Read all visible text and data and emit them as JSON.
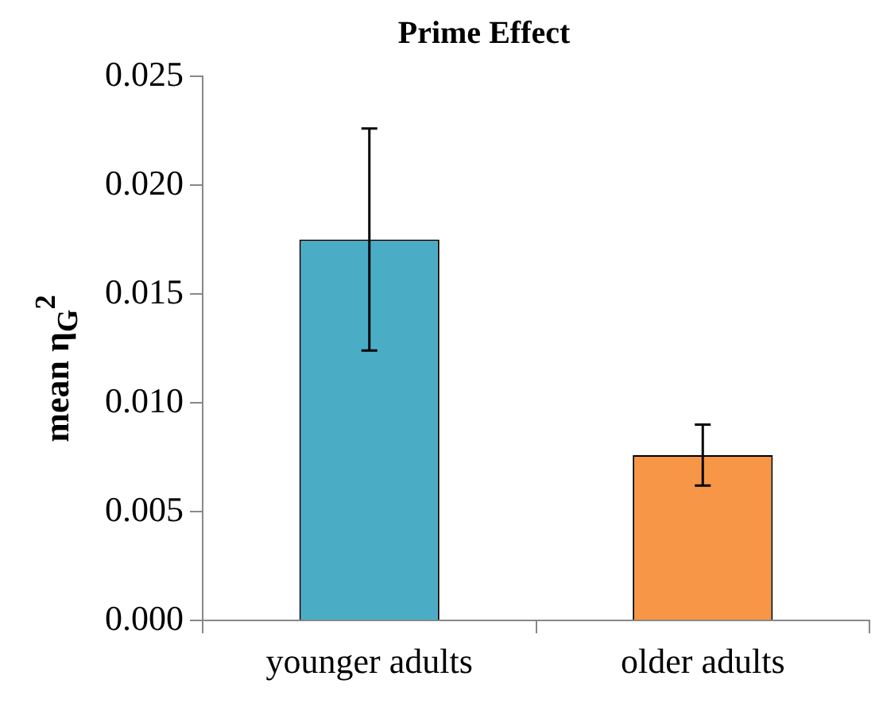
{
  "chart_data": {
    "type": "bar",
    "title": "Prime Effect",
    "ylabel": "mean η$_{G}$$^{2}$",
    "categories": [
      "younger adults",
      "older adults"
    ],
    "values": [
      0.0175,
      0.0076
    ],
    "colors": [
      "#4bacc6",
      "#f79646"
    ],
    "errors": [
      0.0051,
      0.0014
    ],
    "ylim": [
      0,
      0.025
    ],
    "yticks": [
      {
        "value": 0,
        "label": "0.000"
      },
      {
        "value": 0.005,
        "label": "0.005"
      },
      {
        "value": 0.01,
        "label": "0.010"
      },
      {
        "value": 0.015,
        "label": "0.015"
      },
      {
        "value": 0.02,
        "label": "0.020"
      },
      {
        "value": 0.025,
        "label": "0.025"
      }
    ],
    "grid": false,
    "legend": false
  }
}
